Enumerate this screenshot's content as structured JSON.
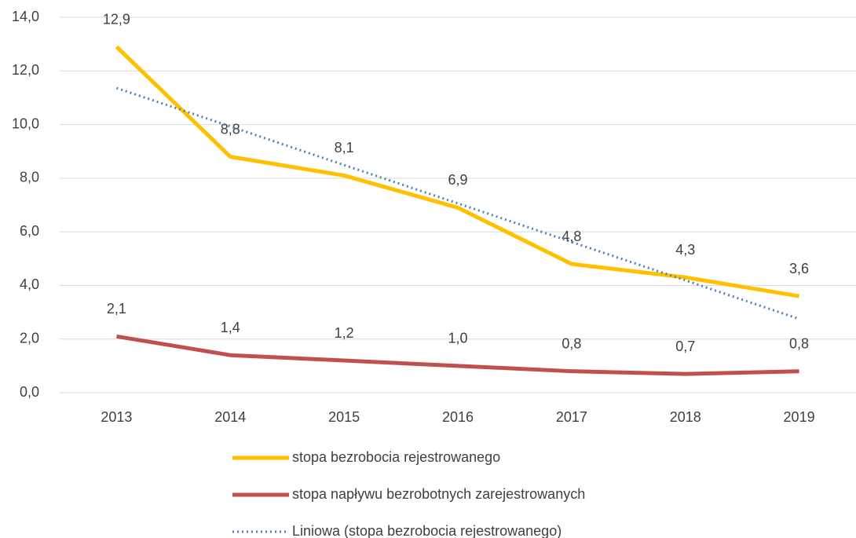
{
  "chart_data": {
    "type": "line",
    "categories": [
      "2013",
      "2014",
      "2015",
      "2016",
      "2017",
      "2018",
      "2019"
    ],
    "series": [
      {
        "name": "stopa bezrobocia rejestrowanego",
        "color": "#FFC000",
        "values": [
          12.9,
          8.8,
          8.1,
          6.9,
          4.8,
          4.3,
          3.6
        ],
        "value_labels": [
          "12,9",
          "8,8",
          "8,1",
          "6,9",
          "4,8",
          "4,3",
          "3,6"
        ]
      },
      {
        "name": "stopa napływu bezrobotnych zarejestrowanych",
        "color": "#C0504D",
        "values": [
          2.1,
          1.4,
          1.2,
          1.0,
          0.8,
          0.7,
          0.8
        ],
        "value_labels": [
          "2,1",
          "1,4",
          "1,2",
          "1,0",
          "0,8",
          "0,7",
          "0,8"
        ]
      },
      {
        "name": "Liniowa (stopa bezrobocia rejestrowanego)",
        "color": "#4F81BD",
        "dotted": true,
        "values": [
          11.36,
          9.93,
          8.49,
          7.06,
          5.62,
          4.19,
          2.75
        ]
      }
    ],
    "ylim": [
      0,
      14
    ],
    "yticks": [
      {
        "value": 0,
        "label": "0,0"
      },
      {
        "value": 2,
        "label": "2,0"
      },
      {
        "value": 4,
        "label": "4,0"
      },
      {
        "value": 6,
        "label": "6,0"
      },
      {
        "value": 8,
        "label": "8,0"
      },
      {
        "value": 10,
        "label": "10,0"
      },
      {
        "value": 12,
        "label": "12,0"
      },
      {
        "value": 14,
        "label": "14,0"
      }
    ],
    "grid": true
  }
}
